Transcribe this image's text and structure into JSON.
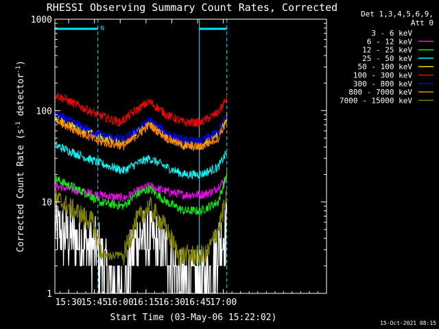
{
  "chart_data": {
    "type": "line",
    "title": "RHESSI Observing Summary Count Rates, Corrected",
    "xlabel": "Start Time (03-May-06 15:22:02)",
    "ylabel_main": "Corrected Count Rate (s",
    "ylabel_sup1": "-1",
    "ylabel_mid": " detector",
    "ylabel_sup2": "-1",
    "ylabel_end": ")",
    "x_start": "15:22:02",
    "x_range_min": [
      0,
      158
    ],
    "x_ticks": [
      {
        "label": "15:30",
        "min": 8
      },
      {
        "label": "15:45",
        "min": 23
      },
      {
        "label": "16:00",
        "min": 38
      },
      {
        "label": "16:15",
        "min": 53
      },
      {
        "label": "16:30",
        "min": 68
      },
      {
        "label": "16:45",
        "min": 83
      },
      {
        "label": "17:00",
        "min": 98
      }
    ],
    "y_scale": "log",
    "ylim": [
      1,
      1000
    ],
    "y_ticks": [
      {
        "label": "1",
        "v": 1
      },
      {
        "label": "10",
        "v": 10
      },
      {
        "label": "100",
        "v": 100
      },
      {
        "label": "1000",
        "v": 1000
      }
    ],
    "legend_header": [
      "Det 1,3,4,5,6,9,",
      "Att 0"
    ],
    "legend_position": "right",
    "markers": {
      "night_marker_label": "N",
      "vertical_lines_min": [
        0,
        25,
        84,
        100
      ],
      "attenuator_bars": [
        [
          0,
          25
        ],
        [
          84,
          100
        ]
      ]
    },
    "series": [
      {
        "name": "3 - 6 keV",
        "color": "#ffffff",
        "legend_color": "#ffffff",
        "key": [
          [
            0,
            5
          ],
          [
            25,
            3
          ],
          [
            32,
            1.3
          ],
          [
            40,
            1
          ],
          [
            47,
            4
          ],
          [
            55,
            4
          ],
          [
            64,
            3
          ],
          [
            72,
            1.6
          ],
          [
            80,
            1.4
          ],
          [
            88,
            1.4
          ],
          [
            94,
            3
          ],
          [
            100,
            5
          ]
        ]
      },
      {
        "name": "6 - 12 keV",
        "color": "#ff00ff",
        "key": [
          [
            0,
            15
          ],
          [
            25,
            12
          ],
          [
            40,
            11
          ],
          [
            48,
            13
          ],
          [
            55,
            15
          ],
          [
            65,
            13
          ],
          [
            75,
            12
          ],
          [
            85,
            12
          ],
          [
            92,
            13
          ],
          [
            100,
            18
          ]
        ]
      },
      {
        "name": "12 - 25 keV",
        "color": "#00ff00",
        "key": [
          [
            0,
            18
          ],
          [
            20,
            12
          ],
          [
            25,
            10
          ],
          [
            40,
            9
          ],
          [
            47,
            12
          ],
          [
            55,
            14
          ],
          [
            65,
            10
          ],
          [
            75,
            8
          ],
          [
            85,
            8
          ],
          [
            95,
            10
          ],
          [
            100,
            20
          ]
        ]
      },
      {
        "name": "25 - 50 keV",
        "color": "#00ffff",
        "key": [
          [
            0,
            42
          ],
          [
            25,
            27
          ],
          [
            40,
            22
          ],
          [
            47,
            26
          ],
          [
            55,
            30
          ],
          [
            65,
            24
          ],
          [
            75,
            20
          ],
          [
            85,
            20
          ],
          [
            95,
            24
          ],
          [
            100,
            35
          ]
        ]
      },
      {
        "name": "50 - 100 keV",
        "color": "#e8e000",
        "key": [
          [
            0,
            82
          ],
          [
            25,
            52
          ],
          [
            40,
            44
          ],
          [
            47,
            56
          ],
          [
            55,
            72
          ],
          [
            65,
            52
          ],
          [
            75,
            42
          ],
          [
            85,
            41
          ],
          [
            95,
            55
          ],
          [
            100,
            85
          ]
        ]
      },
      {
        "name": "100 - 300 keV",
        "color": "#ff0000",
        "key": [
          [
            0,
            150
          ],
          [
            25,
            90
          ],
          [
            38,
            74
          ],
          [
            47,
            100
          ],
          [
            55,
            125
          ],
          [
            65,
            90
          ],
          [
            75,
            74
          ],
          [
            85,
            74
          ],
          [
            95,
            95
          ],
          [
            100,
            135
          ]
        ]
      },
      {
        "name": "300 - 800 keV",
        "color": "#0000ff",
        "key": [
          [
            0,
            92
          ],
          [
            25,
            55
          ],
          [
            40,
            48
          ],
          [
            47,
            60
          ],
          [
            55,
            78
          ],
          [
            65,
            57
          ],
          [
            75,
            47
          ],
          [
            85,
            46
          ],
          [
            95,
            58
          ],
          [
            100,
            90
          ]
        ]
      },
      {
        "name": "800 - 7000 keV",
        "color": "#ff8000",
        "key": [
          [
            0,
            80
          ],
          [
            25,
            46
          ],
          [
            40,
            41
          ],
          [
            47,
            52
          ],
          [
            55,
            70
          ],
          [
            65,
            50
          ],
          [
            75,
            41
          ],
          [
            85,
            40
          ],
          [
            95,
            50
          ],
          [
            100,
            78
          ]
        ]
      },
      {
        "name": "7000 - 15000 keV",
        "color": "#808000",
        "key": [
          [
            0,
            11
          ],
          [
            22,
            6
          ],
          [
            27,
            2.6
          ],
          [
            40,
            2.6
          ],
          [
            47,
            6
          ],
          [
            55,
            9
          ],
          [
            65,
            5
          ],
          [
            72,
            2.6
          ],
          [
            88,
            2.6
          ],
          [
            95,
            5
          ],
          [
            100,
            11
          ]
        ]
      }
    ]
  },
  "footer": {
    "timestamp": "15-Oct-2021 08:15"
  }
}
